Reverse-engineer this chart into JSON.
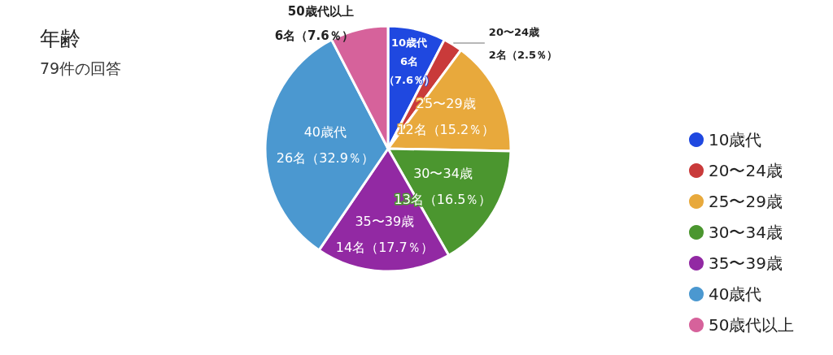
{
  "chart_data": {
    "type": "pie",
    "title": "年齢",
    "subtitle": "79件の回答",
    "categories": [
      "10歳代",
      "20〜24歳",
      "25〜29歳",
      "30〜34歳",
      "35〜39歳",
      "40歳代",
      "50歳代以上"
    ],
    "values": [
      6,
      2,
      12,
      13,
      14,
      26,
      6
    ],
    "colors": [
      "#1f48e0",
      "#c93a3a",
      "#e8a93c",
      "#4b962f",
      "#9229a3",
      "#4b98d0",
      "#d6629b"
    ],
    "value_labels": [
      "6名（7.6％）",
      "2名（2.5％）",
      "12名（15.2％）",
      "13名（16.5％）",
      "14名（17.7％）",
      "26名（32.9％）",
      "6名（7.6％）"
    ],
    "legend": "right"
  }
}
